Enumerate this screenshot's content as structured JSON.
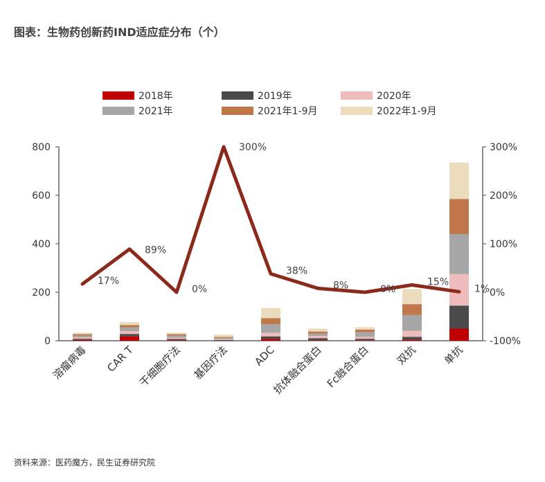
{
  "figure": {
    "title": "图表：生物药创新药IND适应症分布（个）",
    "source": "资料来源：医药魔方，民生证券研究院"
  },
  "chart_data": {
    "type": "bar",
    "stacked": true,
    "categories": [
      "溶瘤病毒",
      "CAR T",
      "干细胞疗法",
      "基因疗法",
      "ADC",
      "抗体融合蛋白",
      "Fc融合蛋白",
      "双抗",
      "单抗"
    ],
    "series": [
      {
        "name": "2018年",
        "color": "#c00000",
        "values": [
          3,
          18,
          2,
          0,
          8,
          2,
          2,
          4,
          50
        ]
      },
      {
        "name": "2019年",
        "color": "#4a4a4a",
        "values": [
          5,
          10,
          5,
          3,
          10,
          8,
          6,
          12,
          95
        ]
      },
      {
        "name": "2020年",
        "color": "#eebcbc",
        "values": [
          6,
          12,
          6,
          4,
          15,
          10,
          8,
          25,
          130
        ]
      },
      {
        "name": "2021年",
        "color": "#a6a6a6",
        "values": [
          7,
          15,
          8,
          5,
          35,
          10,
          20,
          65,
          165
        ]
      },
      {
        "name": "2021年1-9月",
        "color": "#c0784a",
        "values": [
          6,
          10,
          6,
          4,
          25,
          8,
          10,
          45,
          145
        ]
      },
      {
        "name": "2022年1-9月",
        "color": "#ecdcbe",
        "values": [
          6,
          12,
          6,
          9,
          42,
          12,
          10,
          62,
          150
        ]
      }
    ],
    "growth_line": {
      "color": "#8b2a1a",
      "values": [
        17,
        89,
        0,
        300,
        38,
        8,
        0,
        15,
        1
      ],
      "labels": [
        "17%",
        "89%",
        "0%",
        "300%",
        "38%",
        "8%",
        "0%",
        "15%",
        "1%"
      ]
    },
    "y_left": {
      "min": 0,
      "max": 800,
      "ticks": [
        "0",
        "200",
        "400",
        "600",
        "800"
      ]
    },
    "y_right": {
      "min": -100,
      "max": 300,
      "ticks": [
        "-100%",
        "0%",
        "100%",
        "200%",
        "300%"
      ]
    },
    "legend_position": "top",
    "grid": false
  }
}
